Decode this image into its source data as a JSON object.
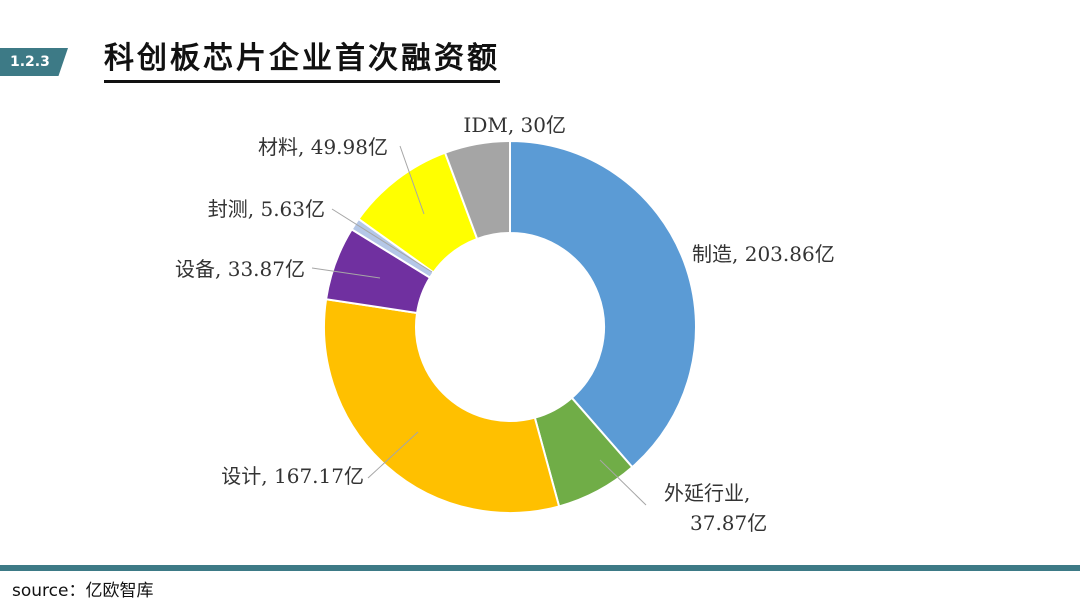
{
  "header": {
    "section_number": "1.2.3",
    "title": "科创板芯片企业首次融资额"
  },
  "footer": {
    "source": "source：亿欧智库"
  },
  "chart_data": {
    "type": "pie",
    "donut": true,
    "title": "科创板芯片企业首次融资额",
    "unit": "亿",
    "slices": [
      {
        "name": "制造",
        "value": 203.86,
        "label": "制造, 203.86亿",
        "color": "#5b9bd5"
      },
      {
        "name": "外延行业",
        "value": 37.87,
        "label": "外延行业,",
        "label2": "37.87亿",
        "color": "#70ad47"
      },
      {
        "name": "设计",
        "value": 167.17,
        "label": "设计, 167.17亿",
        "color": "#ffc000"
      },
      {
        "name": "设备",
        "value": 33.87,
        "label": "设备, 33.87亿",
        "color": "#7030a0"
      },
      {
        "name": "封测",
        "value": 5.63,
        "label": "封测, 5.63亿",
        "color": "#b4c7e7"
      },
      {
        "name": "材料",
        "value": 49.98,
        "label": "材料, 49.98亿",
        "color": "#ffff00"
      },
      {
        "name": "IDM",
        "value": 30,
        "label": "IDM, 30亿",
        "color": "#a5a5a5"
      }
    ]
  }
}
